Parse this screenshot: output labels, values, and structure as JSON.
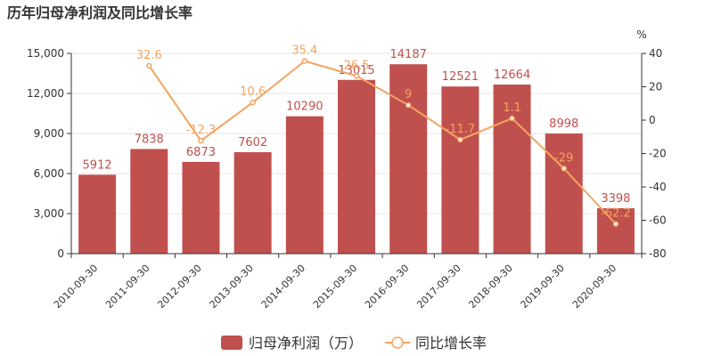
{
  "chart_data": {
    "type": "bar",
    "title": "历年归母净利润及同比增长率",
    "categories": [
      "2010-09-30",
      "2011-09-30",
      "2012-09-30",
      "2013-09-30",
      "2014-09-30",
      "2015-09-30",
      "2016-09-30",
      "2017-09-30",
      "2018-09-30",
      "2019-09-30",
      "2020-09-30"
    ],
    "series": [
      {
        "name": "归母净利润（万）",
        "type": "bar",
        "axis": "left",
        "color": "#c0504d",
        "values": [
          5912,
          7838,
          6873,
          7602,
          10290,
          13015,
          14187,
          12521,
          12664,
          8998,
          3398
        ],
        "labels": [
          "5912",
          "7838",
          "6873",
          "7602",
          "10290",
          "13015",
          "14187",
          "12521",
          "12664",
          "8998",
          "3398"
        ]
      },
      {
        "name": "同比增长率",
        "type": "line",
        "axis": "right",
        "color": "#f4a460",
        "values": [
          null,
          32.6,
          -12.3,
          10.6,
          35.4,
          26.5,
          9,
          -11.7,
          1.1,
          -29,
          -62.2
        ],
        "labels": [
          "",
          "32.6",
          "-12.3",
          "10.6",
          "35.4",
          "26.5",
          "9",
          "-11.7",
          "1.1",
          "-29",
          "-62.2"
        ]
      }
    ],
    "y_left": {
      "ylim": [
        0,
        15000
      ],
      "ticks": [
        "0",
        "3,000",
        "6,000",
        "9,000",
        "12,000",
        "15,000"
      ],
      "tick_values": [
        0,
        3000,
        6000,
        9000,
        12000,
        15000
      ]
    },
    "y_right": {
      "ylim": [
        -80,
        40
      ],
      "unit": "%",
      "ticks": [
        "-80",
        "-60",
        "-40",
        "-20",
        "0",
        "20",
        "40"
      ],
      "tick_values": [
        -80,
        -60,
        -40,
        -20,
        0,
        20,
        40
      ]
    },
    "grid": true,
    "legend_position": "bottom-center",
    "legend": [
      "归母净利润（万）",
      "同比增长率"
    ]
  }
}
